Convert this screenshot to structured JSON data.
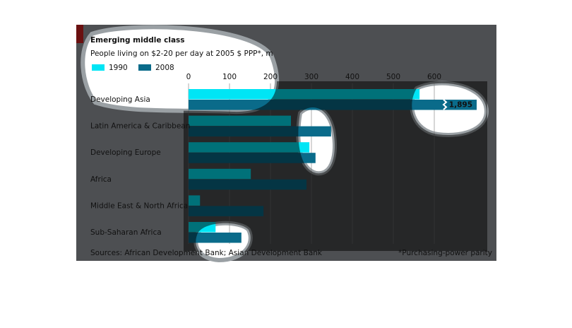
{
  "chart_data": {
    "type": "bar",
    "orientation": "horizontal",
    "title": "Emerging middle class",
    "subtitle": "People living on $2-20 per day at 2005 $ PPP*, m",
    "categories": [
      "Developing Asia",
      "Latin America & Caribbean",
      "Developing Europe",
      "Africa",
      "Middle East & North Africa",
      "Sub-Saharan Africa"
    ],
    "series": [
      {
        "name": "1990",
        "color": "#00e5f5",
        "values": [
          564,
          250,
          295,
          152,
          28,
          66
        ]
      },
      {
        "name": "2008",
        "color": "#0a6b8a",
        "values": [
          1895,
          348,
          310,
          288,
          183,
          129
        ],
        "value_labels": [
          "1,895",
          null,
          null,
          null,
          null,
          null
        ]
      }
    ],
    "xlim": [
      0,
      700
    ],
    "xticks": [
      0,
      100,
      200,
      300,
      400,
      500,
      600
    ],
    "grid": true,
    "source": "Sources: African Development Bank; Asian Development Bank",
    "footnote": "*Purchasing-power parity"
  }
}
